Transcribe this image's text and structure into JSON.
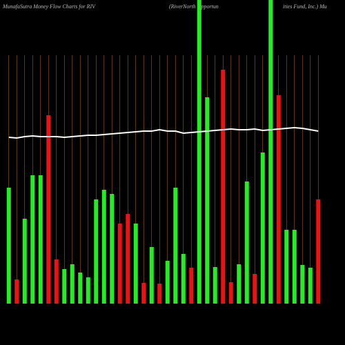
{
  "chart_data": {
    "type": "bar",
    "title_parts": [
      "MunafaSutra  Money Flow  Charts for RIV",
      "(RiverNorth Opportun",
      "ities Fund, Inc.) Mu"
    ],
    "categories": [
      null,
      null,
      null,
      null,
      null,
      null,
      null,
      null,
      null,
      null,
      null,
      null,
      null,
      null,
      null,
      null,
      null,
      null,
      null,
      null,
      null,
      null,
      null,
      null,
      null,
      null,
      null,
      null,
      null,
      null,
      null,
      null,
      null,
      null,
      null,
      null,
      null,
      null,
      null,
      null
    ],
    "values": [
      168,
      35,
      123,
      186,
      186,
      273,
      64,
      50,
      57,
      45,
      38,
      151,
      165,
      159,
      116,
      130,
      116,
      30,
      82,
      29,
      62,
      168,
      72,
      52,
      440,
      299,
      53,
      339,
      31,
      57,
      177,
      43,
      219,
      440,
      302,
      107,
      107,
      56,
      52,
      151
    ],
    "colors": [
      "#22ee22",
      "#ee1111",
      "#22ee22",
      "#22ee22",
      "#22ee22",
      "#ee1111",
      "#ee1111",
      "#22ee22",
      "#22ee22",
      "#22ee22",
      "#22ee22",
      "#22ee22",
      "#22ee22",
      "#22ee22",
      "#ee1111",
      "#ee1111",
      "#22ee22",
      "#ee1111",
      "#22ee22",
      "#ee1111",
      "#22ee22",
      "#22ee22",
      "#22ee22",
      "#ee1111",
      "#22ee22",
      "#22ee22",
      "#22ee22",
      "#ee1111",
      "#ee1111",
      "#22ee22",
      "#22ee22",
      "#ee1111",
      "#22ee22",
      "#22ee22",
      "#ee1111",
      "#22ee22",
      "#22ee22",
      "#22ee22",
      "#22ee22",
      "#ee1111"
    ],
    "line": {
      "color": "#ffffff",
      "values": [
        241,
        240,
        242,
        243,
        242,
        242,
        242,
        241,
        242,
        243,
        244,
        244,
        245,
        246,
        247,
        248,
        249,
        250,
        250,
        252,
        250,
        250,
        247,
        248,
        249,
        250,
        251,
        252,
        253,
        252,
        252,
        253,
        251,
        252,
        253,
        254,
        255,
        254,
        252,
        250
      ]
    },
    "ylim": [
      0,
      440
    ],
    "grid_color": "#a0660a"
  }
}
